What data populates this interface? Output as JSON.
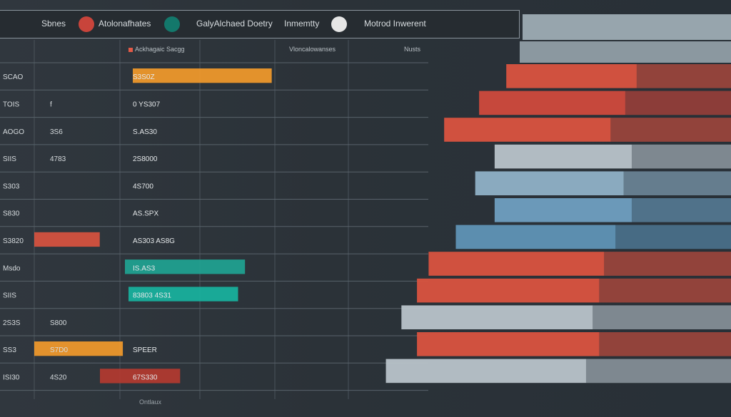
{
  "legend": {
    "items": [
      {
        "label": "Sbnes",
        "color": ""
      },
      {
        "label": "Atolonafhates",
        "color": "#c8443b"
      },
      {
        "label": "GalyAlchaed Doetry",
        "color": "#13786b"
      },
      {
        "label": "Inmemtty",
        "color": "#e6e6e6"
      },
      {
        "label": "Motrod Inwerent",
        "color": ""
      }
    ]
  },
  "column_headers": [
    "Ackhagaic Sacgg",
    "Vloncalowanses",
    "Nusts"
  ],
  "footer": "Ontlaux",
  "chart_data": {
    "type": "bar",
    "rows": [
      {
        "label": "SCAO",
        "col1": "",
        "col2": "S3S0Z",
        "band_color": "#f39a2b",
        "band": 0.56
      },
      {
        "label": "TOIS",
        "col1": "f",
        "col2": "0 YS307",
        "band_color": "",
        "band": 0
      },
      {
        "label": "AOGO",
        "col1": "3S6",
        "col2": "S.AS30",
        "band_color": "",
        "band": 0
      },
      {
        "label": "SIIS",
        "col1": "4783",
        "col2": "2S8000",
        "band_color": "",
        "band": 0
      },
      {
        "label": "S303",
        "col1": "",
        "col2": "4S700",
        "band_color": "",
        "band": 0
      },
      {
        "label": "S830",
        "col1": "",
        "col2": "AS.SPX",
        "band_color": "",
        "band": 0
      },
      {
        "label": "S3820",
        "col1": "",
        "col2": "AS303 AS8G",
        "band_color": "#d9533f",
        "band": 0.21
      },
      {
        "label": "Msdo",
        "col1": "",
        "col2": "IS.AS3",
        "band_color": "#1fa392",
        "band": 0.47
      },
      {
        "label": "SIIS",
        "col1": "",
        "col2": "83803 4S31",
        "band_color": "#18b3a0",
        "band": 0.42
      },
      {
        "label": "2S3S",
        "col1": "S800",
        "col2": "",
        "band_color": "",
        "band": 0
      },
      {
        "label": "SS3",
        "col1": "S7D0",
        "col2": "SPEER",
        "band_color": "#f39a2b",
        "band": 0.32
      },
      {
        "label": "ISI30",
        "col1": "4S20",
        "col2": "67S330",
        "band_color": "#b43a30",
        "band": 0.28
      }
    ],
    "right_bars": [
      {
        "value": 0.45,
        "color": "#d9533f"
      },
      {
        "value": 0.52,
        "color": "#cf4a3c"
      },
      {
        "value": 0.61,
        "color": "#d9533f"
      },
      {
        "value": 0.48,
        "color": "#b8c3c9"
      },
      {
        "value": 0.53,
        "color": "#8fb1c6"
      },
      {
        "value": 0.48,
        "color": "#6f9fc0"
      },
      {
        "value": 0.58,
        "color": "#5f93b5"
      },
      {
        "value": 0.65,
        "color": "#d9533f"
      },
      {
        "value": 0.68,
        "color": "#d9533f"
      },
      {
        "value": 0.72,
        "color": "#b8c3c9"
      },
      {
        "value": 0.68,
        "color": "#d9533f"
      },
      {
        "value": 0.76,
        "color": "#b8c3c9"
      }
    ]
  }
}
